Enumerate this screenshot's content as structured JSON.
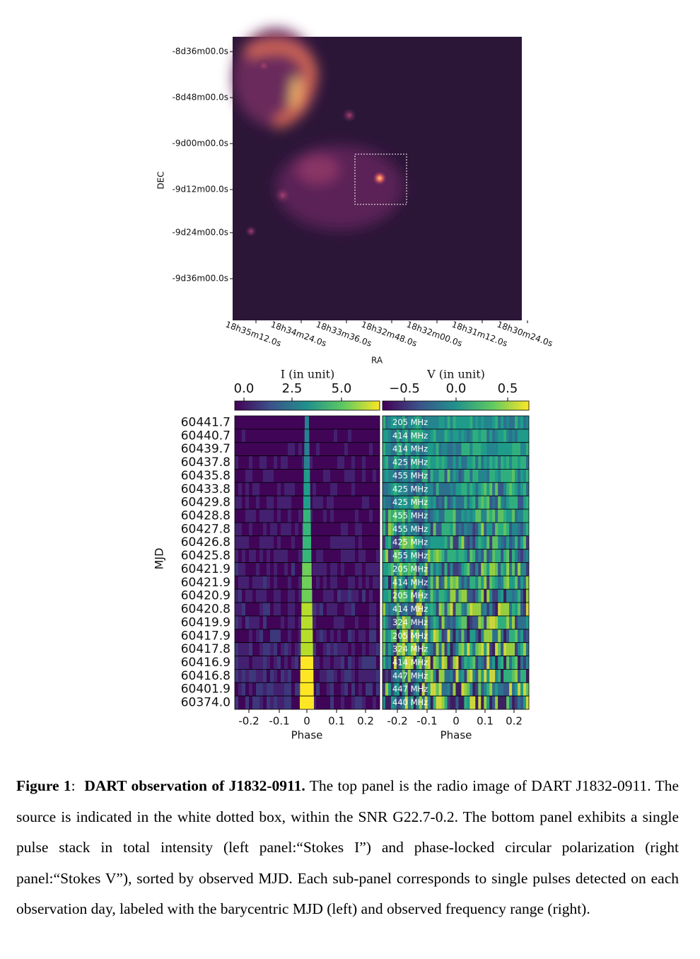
{
  "figure": {
    "image": {
      "dec_label": "DEC",
      "ra_label": "RA",
      "dec_ticks": [
        "-8d36m00.0s",
        "-8d48m00.0s",
        "-9d00m00.0s",
        "-9d12m00.0s",
        "-9d24m00.0s",
        "-9d36m00.0s"
      ],
      "ra_ticks": [
        "18h35m12.0s",
        "18h34m24.0s",
        "18h33m36.0s",
        "18h32m48.0s",
        "18h32m00.0s",
        "18h31m12.0s",
        "18h30m24.0s"
      ]
    },
    "stokes_i": {
      "colorbar_label": "I (in unit)",
      "colorbar_ticks": [
        "0.0",
        "2.5",
        "5.0"
      ],
      "y_label": "MJD",
      "rows": [
        "60441.7",
        "60440.7",
        "60439.7",
        "60437.8",
        "60435.8",
        "60433.8",
        "60429.8",
        "60428.8",
        "60427.8",
        "60426.8",
        "60425.8",
        "60421.9",
        "60421.9",
        "60420.9",
        "60420.8",
        "60419.9",
        "60417.9",
        "60417.8",
        "60416.9",
        "60416.8",
        "60401.9",
        "60374.0"
      ],
      "x_ticks": [
        "-0.2",
        "-0.1",
        "0",
        "0.1",
        "0.2"
      ],
      "x_label": "Phase"
    },
    "stokes_v": {
      "colorbar_label": "V (in unit)",
      "colorbar_ticks": [
        "−0.5",
        "0.0",
        "0.5"
      ],
      "rows": [
        "205 MHz",
        "414 MHz",
        "414 MHz",
        "425 MHz",
        "455 MHz",
        "425 MHz",
        "425 MHz",
        "455 MHz",
        "455 MHz",
        "425 MHz",
        "455 MHz",
        "205 MHz",
        "414 MHz",
        "205 MHz",
        "414 MHz",
        "324 MHz",
        "205 MHz",
        "324 MHz",
        "414 MHz",
        "447 MHz",
        "447 MHz",
        "440 MHz"
      ],
      "x_ticks": [
        "-0.2",
        "-0.1",
        "0",
        "0.1",
        "0.2"
      ],
      "x_label": "Phase"
    },
    "caption": {
      "label": "Figure 1",
      "separator": ":",
      "title": "DART observation of J1832-0911.",
      "text": "The top panel is the radio image of DART J1832-0911. The source is indicated in the white dotted box, within the SNR  G22.7-0.2. The bottom panel exhibits a single pulse stack in total intensity (left panel:“Stokes I”) and phase-locked circular polarization (right panel:“Stokes V”), sorted by observed MJD. Each sub-panel corresponds to single pulses detected on each observation day, labeled with the barycentric MJD (left) and observed frequency range (right)."
    }
  }
}
